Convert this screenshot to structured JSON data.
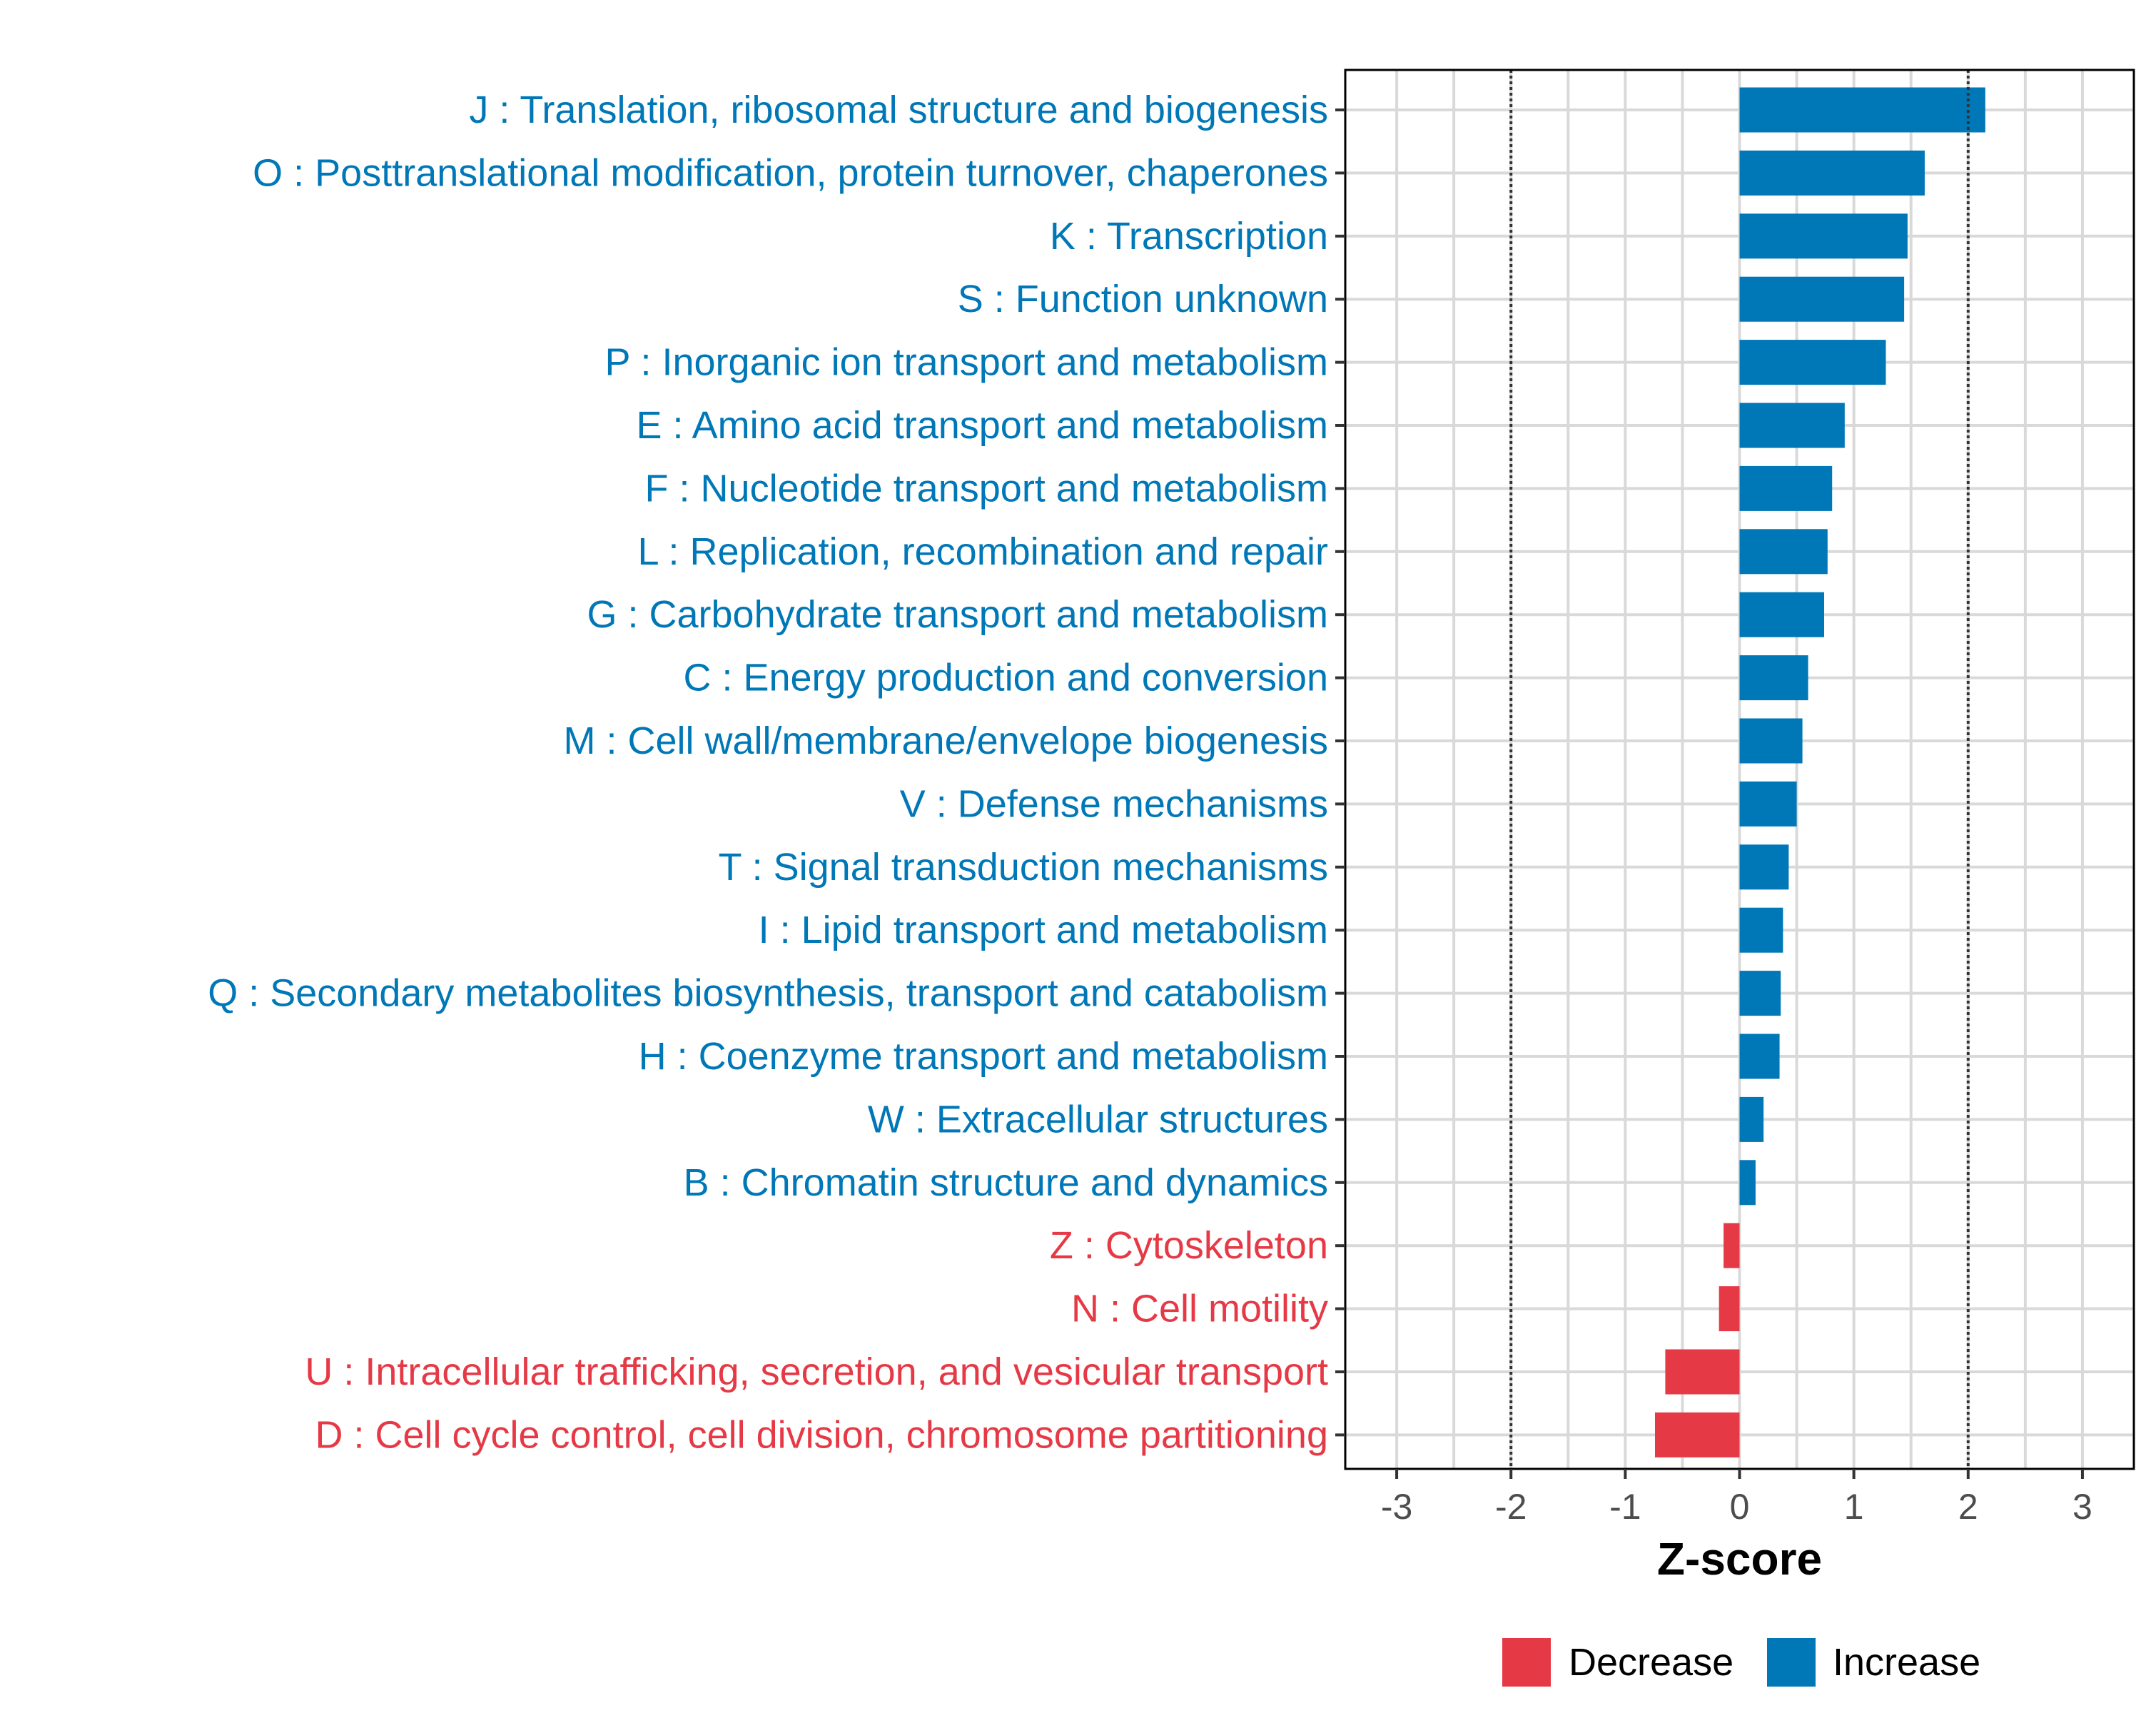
{
  "chart_data": {
    "type": "bar",
    "orientation": "horizontal",
    "title": "",
    "xlabel": "Z-score",
    "ylabel": "",
    "xlim": [
      -3.45,
      3.45
    ],
    "xticks": [
      -3,
      -2,
      -1,
      0,
      1,
      2,
      3
    ],
    "xtick_labels": [
      "-3",
      "-2",
      "-1",
      "0",
      "1",
      "2",
      "3"
    ],
    "reference_lines": [
      -2,
      2
    ],
    "grid": true,
    "legend_position": "bottom",
    "categories": [
      "J : Translation, ribosomal structure and biogenesis",
      "O : Posttranslational modification, protein turnover, chaperones",
      "K : Transcription",
      "S : Function unknown",
      "P : Inorganic ion transport and metabolism",
      "E : Amino acid transport and metabolism",
      "F : Nucleotide transport and metabolism",
      "L : Replication, recombination and repair",
      "G : Carbohydrate transport and metabolism",
      "C : Energy production and conversion",
      "M : Cell wall/membrane/envelope biogenesis",
      "V : Defense mechanisms",
      "T : Signal transduction mechanisms",
      "I : Lipid transport and metabolism",
      "Q : Secondary metabolites biosynthesis, transport and catabolism",
      "H : Coenzyme transport and metabolism",
      "W : Extracellular structures",
      "B : Chromatin structure and dynamics",
      "Z : Cytoskeleton",
      "N : Cell motility",
      "U : Intracellular trafficking, secretion, and vesicular transport",
      "D : Cell cycle control, cell division, chromosome partitioning"
    ],
    "values": [
      2.15,
      1.62,
      1.47,
      1.44,
      1.28,
      0.92,
      0.81,
      0.77,
      0.74,
      0.6,
      0.55,
      0.5,
      0.43,
      0.38,
      0.36,
      0.35,
      0.21,
      0.14,
      -0.14,
      -0.18,
      -0.65,
      -0.74
    ],
    "groups": [
      "Increase",
      "Increase",
      "Increase",
      "Increase",
      "Increase",
      "Increase",
      "Increase",
      "Increase",
      "Increase",
      "Increase",
      "Increase",
      "Increase",
      "Increase",
      "Increase",
      "Increase",
      "Increase",
      "Increase",
      "Increase",
      "Decrease",
      "Decrease",
      "Decrease",
      "Decrease"
    ],
    "legend": [
      {
        "name": "Decrease",
        "color": "#e63946"
      },
      {
        "name": "Increase",
        "color": "#0077b6"
      }
    ]
  }
}
